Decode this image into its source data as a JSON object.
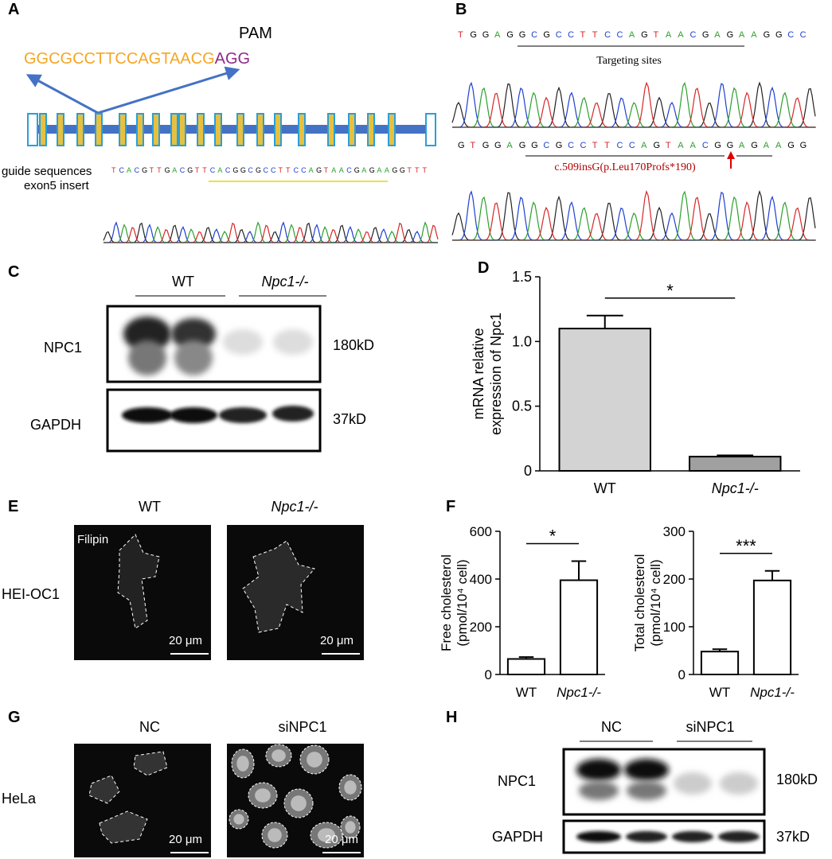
{
  "panel_a": {
    "letter": "A",
    "pam_label": "PAM",
    "guide": "GGCGCCTTCCAGTAACG",
    "pam": "AGG",
    "guide_label": "guide sequences",
    "exon_label": "exon5 insert",
    "trace_seq": "TCACGTTGACGTTCACGGCGCCTTCCAGTAACGAGAAGGTTT"
  },
  "panel_b": {
    "letter": "B",
    "seq_wt": "TGGAGGCGCCTTCCAGTAACGAGAAGGCC",
    "target_label": "Targeting sites",
    "seq_mut": "GTGGAGGCGCCTTCCAGTAACGGAGAAGG",
    "mutation": "c.509insG(p.Leu170Profs*190)"
  },
  "panel_c": {
    "letter": "C",
    "groups": [
      "WT",
      "Npc1-/-"
    ],
    "rows": [
      "NPC1",
      "GAPDH"
    ],
    "sizes": [
      "180kD",
      "37kD"
    ]
  },
  "panel_e": {
    "letter": "E",
    "groups": [
      "WT",
      "Npc1-/-"
    ],
    "stain": "Filipin",
    "cell_line": "HEI-OC1",
    "scale_bars": [
      "20 μm",
      "20 μm"
    ]
  },
  "panel_g": {
    "letter": "G",
    "groups": [
      "NC",
      "siNPC1"
    ],
    "cell_line": "HeLa",
    "scale_bars": [
      "20 μm",
      "20 μm"
    ]
  },
  "panel_h": {
    "letter": "H",
    "groups": [
      "NC",
      "siNPC1"
    ],
    "rows": [
      "NPC1",
      "GAPDH"
    ],
    "sizes": [
      "180kD",
      "37kD"
    ]
  },
  "chart_data": [
    {
      "type": "bar",
      "panel": "D",
      "categories": [
        "WT",
        "Npc1-/-"
      ],
      "values": [
        1.1,
        0.11
      ],
      "errors": [
        0.1,
        0.01
      ],
      "colors": [
        "#d3d3d3",
        "#a0a0a0"
      ],
      "ylabel": [
        "mRNA relative",
        "expression of Npc1"
      ],
      "ylim": [
        0,
        1.5
      ],
      "yticks": [
        0,
        0.5,
        {
          "value": 1,
          "label": "1.0"
        },
        1.5
      ],
      "significance": "*"
    },
    {
      "type": "bar",
      "panel": "F",
      "categories": [
        "WT",
        "Npc1-/-"
      ],
      "values": [
        65,
        395
      ],
      "errors": [
        8,
        80
      ],
      "colors": [
        "#ffffff",
        "#ffffff"
      ],
      "ylabel": [
        "Free cholesterol",
        "(pmol/10⁴ cell)"
      ],
      "ylim": [
        0,
        600
      ],
      "yticks": [
        0,
        200,
        400,
        600
      ],
      "significance": "*"
    },
    {
      "type": "bar",
      "categories": [
        "WT",
        "Npc1-/-"
      ],
      "values": [
        48,
        197
      ],
      "errors": [
        5,
        20
      ],
      "colors": [
        "#ffffff",
        "#ffffff"
      ],
      "ylabel": [
        "Total cholesterol",
        "(pmol/10⁴ cell)"
      ],
      "ylim": [
        0,
        300
      ],
      "yticks": [
        0,
        100,
        200,
        300
      ],
      "significance": "***"
    }
  ]
}
